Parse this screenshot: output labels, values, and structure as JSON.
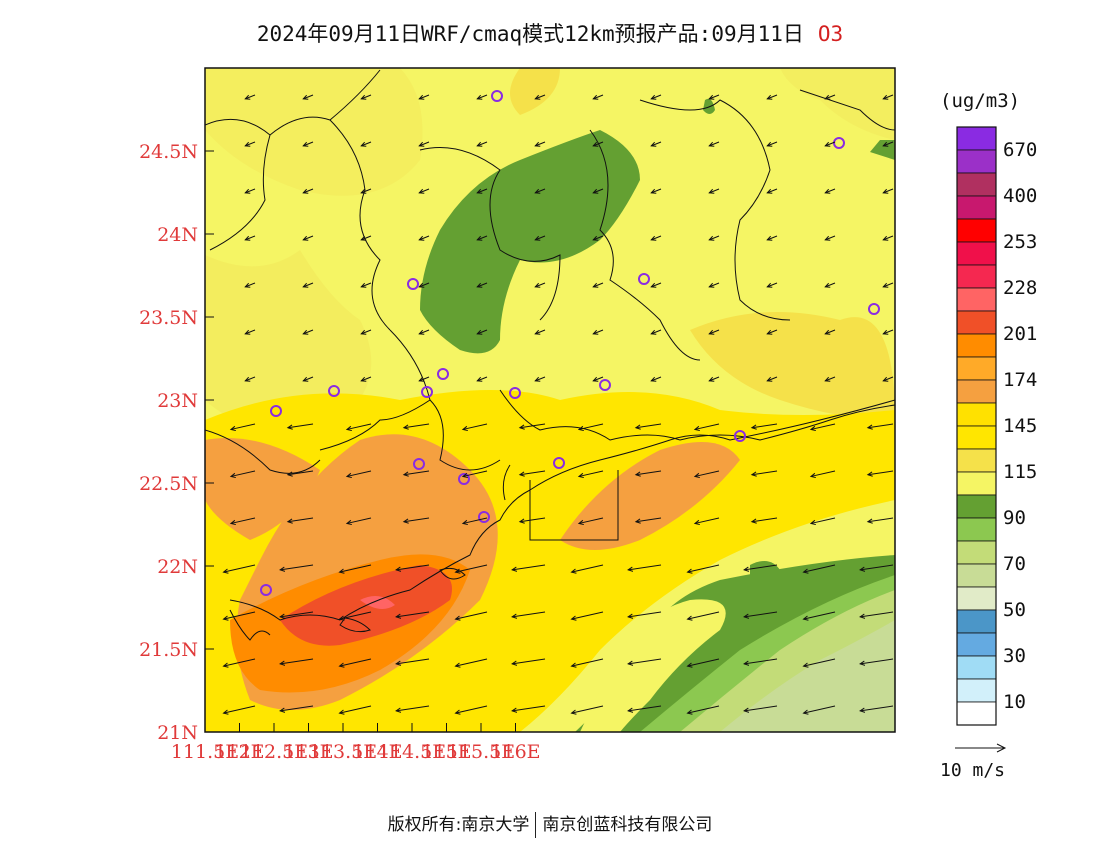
{
  "title": {
    "main": "2024年09月11日WRF/cmaq模式12km预报产品:09月11日",
    "species": "O3"
  },
  "map": {
    "lat_ticks": [
      "24.5N",
      "24N",
      "23.5N",
      "23N",
      "22.5N",
      "22N",
      "21.5N",
      "21N"
    ],
    "lon_ticks": [
      "111.5E",
      "112E",
      "112.5E",
      "113E",
      "113.5E",
      "114E",
      "114.5E",
      "115E",
      "115.5E",
      "116E"
    ],
    "extent": {
      "lon": [
        111.5,
        116.4
      ],
      "lat": [
        21.0,
        24.95
      ]
    },
    "pollutant": "O3",
    "station_markers": 16
  },
  "legend": {
    "unit": "(ug/m3)",
    "levels": [
      {
        "label": "670",
        "color": "#8a2be2"
      },
      {
        "label": "",
        "color": "#9b30c8"
      },
      {
        "label": "400",
        "color": "#b03060"
      },
      {
        "label": "",
        "color": "#c8186e"
      },
      {
        "label": "253",
        "color": "#ff0000"
      },
      {
        "label": "",
        "color": "#f0104a"
      },
      {
        "label": "228",
        "color": "#f52850"
      },
      {
        "label": "",
        "color": "#ff6464"
      },
      {
        "label": "201",
        "color": "#f05028"
      },
      {
        "label": "",
        "color": "#ff8c00"
      },
      {
        "label": "174",
        "color": "#ffaa28"
      },
      {
        "label": "",
        "color": "#f5a040"
      },
      {
        "label": "145",
        "color": "#ffe100"
      },
      {
        "label": "",
        "color": "#ffe600"
      },
      {
        "label": "115",
        "color": "#f5e14a"
      },
      {
        "label": "",
        "color": "#f5f564"
      },
      {
        "label": "90",
        "color": "#64a032"
      },
      {
        "label": "",
        "color": "#8cc850"
      },
      {
        "label": "70",
        "color": "#c3dc78"
      },
      {
        "label": "",
        "color": "#c8dc96"
      },
      {
        "label": "50",
        "color": "#e1ebc8"
      },
      {
        "label": "",
        "color": "#4b96c8"
      },
      {
        "label": "30",
        "color": "#64aae1"
      },
      {
        "label": "",
        "color": "#a0dcf5"
      },
      {
        "label": "10",
        "color": "#d2f0fa"
      },
      {
        "label": "",
        "color": "#ffffff"
      }
    ]
  },
  "wind": {
    "reference": "10 m/s"
  },
  "footer": {
    "left": "版权所有:南京大学",
    "right": "南京创蓝科技有限公司"
  }
}
